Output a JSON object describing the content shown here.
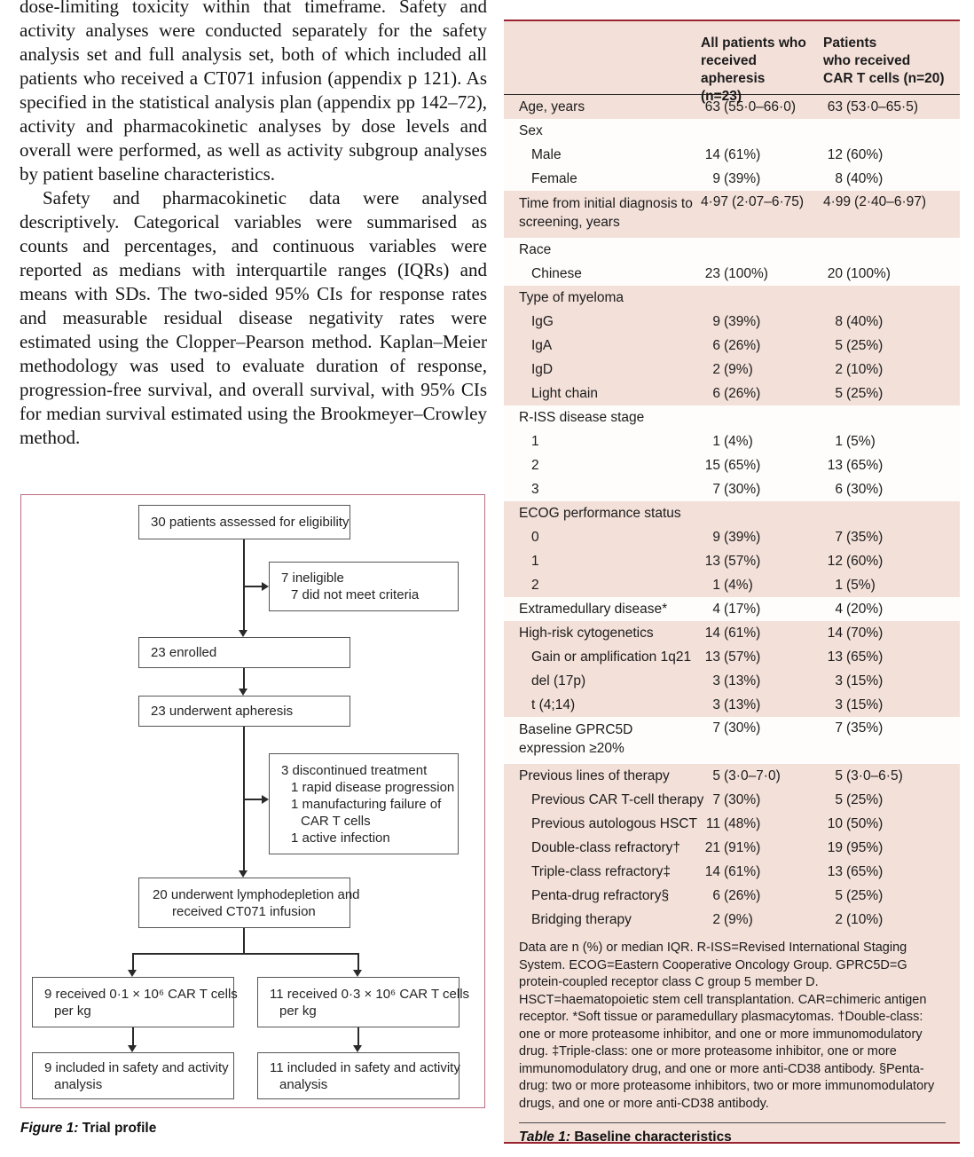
{
  "body": {
    "p1": "dose-limiting toxicity within that timeframe. Safety and activity analyses were conducted separately for the safety analysis set and full analysis set, both of which included all patients who received a CT071 infusion (appendix p 121). As specified in the statistical analysis plan (appendix pp 142–72), activity and pharmacokinetic analyses by dose levels and overall were performed, as well as activity subgroup analyses by patient baseline characteristics.",
    "p2": "Safety and pharmacokinetic data were analysed descriptively. Categorical variables were summarised as counts and percentages, and continuous variables were reported as medians with interquartile ranges (IQRs) and means with SDs. The two-sided 95% CIs for response rates and measurable residual disease negativity rates were estimated using the Clopper–Pearson method. Kaplan–Meier methodology was used to evaluate duration of response, progression-free survival, and overall survival, with 95% CIs for median survival estimated using the Brookmeyer–Crowley method."
  },
  "figure": {
    "caption_label": "Figure 1:",
    "caption_title": "Trial profile",
    "nodes": {
      "assessed": "30 patients assessed for eligibility",
      "ineligible": [
        "7 ineligible",
        "7 did not meet criteria"
      ],
      "enrolled": "23 enrolled",
      "apheresis": "23 underwent apheresis",
      "discontinued": [
        "3 discontinued treatment",
        "1 rapid disease progression",
        "1 manufacturing failure of",
        "CAR T cells",
        "1 active infection"
      ],
      "lymphodepletion": [
        "20 underwent lymphodepletion and",
        "received CT071 infusion"
      ],
      "dose_low": [
        "9 received 0·1 × 10⁶ CAR T cells",
        "per kg"
      ],
      "dose_high": [
        "11 received 0·3 × 10⁶ CAR T cells",
        "per kg"
      ],
      "analysis_low": [
        "9 included in safety and activity",
        "analysis"
      ],
      "analysis_high": [
        "11 included in safety and activity",
        "analysis"
      ]
    }
  },
  "table": {
    "caption_label": "Table 1:",
    "caption_title": "Baseline characteristics",
    "header": {
      "col2_lines": [
        "All patients who",
        "received apheresis",
        "(n=23)"
      ],
      "col3_lines": [
        "Patients",
        "who received",
        "CAR T cells (n=20)"
      ]
    },
    "rows": [
      {
        "label": "Age, years",
        "indent": 0,
        "band": "pink",
        "c1": "63 (55·0–66·0)",
        "c2": "63 (53·0–65·5)"
      },
      {
        "label": "Sex",
        "indent": 0,
        "band": "white",
        "c1": "",
        "c2": ""
      },
      {
        "label": "Male",
        "indent": 1,
        "band": "white",
        "c1": "14 (61%)",
        "c2": "12 (60%)"
      },
      {
        "label": "Female",
        "indent": 1,
        "band": "white",
        "c1": "9 (39%)",
        "c2": "8 (40%)"
      },
      {
        "label": "Time from initial diagnosis to\nscreening, years",
        "indent": 0,
        "band": "pink",
        "twoline": true,
        "c1": "4·97 (2·07–6·75)",
        "c2": "4·99 (2·40–6·97)"
      },
      {
        "label": "Race",
        "indent": 0,
        "band": "white",
        "c1": "",
        "c2": ""
      },
      {
        "label": "Chinese",
        "indent": 1,
        "band": "white",
        "c1": "23 (100%)",
        "c2": "20 (100%)"
      },
      {
        "label": "Type of myeloma",
        "indent": 0,
        "band": "pink",
        "c1": "",
        "c2": ""
      },
      {
        "label": "IgG",
        "indent": 1,
        "band": "pink",
        "c1": "9 (39%)",
        "c2": "8 (40%)"
      },
      {
        "label": "IgA",
        "indent": 1,
        "band": "pink",
        "c1": "6 (26%)",
        "c2": "5 (25%)"
      },
      {
        "label": "IgD",
        "indent": 1,
        "band": "pink",
        "c1": "2 (9%)",
        "c2": "2 (10%)"
      },
      {
        "label": "Light chain",
        "indent": 1,
        "band": "pink",
        "c1": "6 (26%)",
        "c2": "5 (25%)"
      },
      {
        "label": "R-ISS disease stage",
        "indent": 0,
        "band": "white",
        "c1": "",
        "c2": ""
      },
      {
        "label": "1",
        "indent": 1,
        "band": "white",
        "c1": "1 (4%)",
        "c2": "1 (5%)"
      },
      {
        "label": "2",
        "indent": 1,
        "band": "white",
        "c1": "15 (65%)",
        "c2": "13 (65%)"
      },
      {
        "label": "3",
        "indent": 1,
        "band": "white",
        "c1": "7 (30%)",
        "c2": "6 (30%)"
      },
      {
        "label": "ECOG performance status",
        "indent": 0,
        "band": "pink",
        "c1": "",
        "c2": ""
      },
      {
        "label": "0",
        "indent": 1,
        "band": "pink",
        "c1": "9 (39%)",
        "c2": "7 (35%)"
      },
      {
        "label": "1",
        "indent": 1,
        "band": "pink",
        "c1": "13 (57%)",
        "c2": "12 (60%)"
      },
      {
        "label": "2",
        "indent": 1,
        "band": "pink",
        "c1": "1 (4%)",
        "c2": "1 (5%)"
      },
      {
        "label": "Extramedullary disease*",
        "indent": 0,
        "band": "white",
        "c1": "4 (17%)",
        "c2": "4 (20%)"
      },
      {
        "label": "High-risk cytogenetics",
        "indent": 0,
        "band": "pink",
        "c1": "14 (61%)",
        "c2": "14 (70%)"
      },
      {
        "label": "Gain or amplification 1q21",
        "indent": 1,
        "band": "pink",
        "c1": "13 (57%)",
        "c2": "13 (65%)"
      },
      {
        "label": "del (17p)",
        "indent": 1,
        "band": "pink",
        "c1": "3 (13%)",
        "c2": "3 (15%)"
      },
      {
        "label": "t (4;14)",
        "indent": 1,
        "band": "pink",
        "c1": "3 (13%)",
        "c2": "3 (15%)"
      },
      {
        "label": "Baseline GPRC5D\nexpression ≥20%",
        "indent": 0,
        "band": "white",
        "twoline": true,
        "c1": "7 (30%)",
        "c2": "7 (35%)"
      },
      {
        "label": "Previous lines of therapy",
        "indent": 0,
        "band": "pink",
        "c1": "5 (3·0–7·0)",
        "c2": "5 (3·0–6·5)"
      },
      {
        "label": "Previous CAR T-cell therapy",
        "indent": 1,
        "band": "pink",
        "c1": "7 (30%)",
        "c2": "5 (25%)"
      },
      {
        "label": "Previous autologous HSCT",
        "indent": 1,
        "band": "pink",
        "c1": "11 (48%)",
        "c2": "10 (50%)"
      },
      {
        "label": "Double-class refractory†",
        "indent": 1,
        "band": "pink",
        "c1": "21 (91%)",
        "c2": "19 (95%)"
      },
      {
        "label": "Triple-class refractory‡",
        "indent": 1,
        "band": "pink",
        "c1": "14 (61%)",
        "c2": "13 (65%)"
      },
      {
        "label": "Penta-drug refractory§",
        "indent": 1,
        "band": "pink",
        "c1": "6 (26%)",
        "c2": "5 (25%)"
      },
      {
        "label": "Bridging therapy",
        "indent": 1,
        "band": "pink",
        "c1": "2 (9%)",
        "c2": "2 (10%)"
      }
    ],
    "footnote": "Data are n (%) or median IQR. R-ISS=Revised International Staging System. ECOG=Eastern Cooperative Oncology Group. GPRC5D=G protein-coupled receptor class C group 5 member D. HSCT=haematopoietic stem cell transplantation. CAR=chimeric antigen receptor. *Soft tissue or paramedullary plasmacytomas. †Double-class: one or more proteasome inhibitor, and one or more immunomodulatory drug. ‡Triple-class: one or more proteasome inhibitor, one or more immunomodulatory drug, and one or more anti-CD38 antibody. §Penta-drug: two or more proteasome inhibitors, two or more immunomodulatory drugs, and one or more anti-CD38 antibody."
  },
  "colors": {
    "table_background": "#f3e0d9",
    "table_border": "#9a2430",
    "figure_border": "#bb6c80",
    "row_band_white": "#fffdfc"
  }
}
